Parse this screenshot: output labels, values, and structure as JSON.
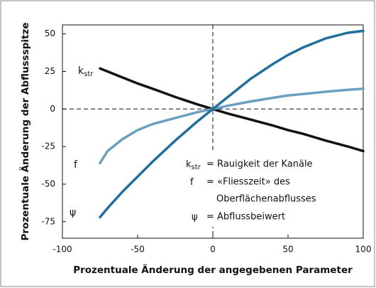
{
  "chart_data": {
    "type": "line",
    "xlabel": "Prozentuale Änderung der angegebenen Parameter",
    "ylabel": "Prozentuale Änderung der Abflussspitze",
    "x": [
      -75,
      -70,
      -60,
      -50,
      -40,
      -25,
      -10,
      0,
      10,
      25,
      40,
      50,
      60,
      75,
      90,
      100
    ],
    "series": [
      {
        "name": "k",
        "subscript": "str",
        "color": "#111111",
        "description": [
          "= Rauigkeit der Kanäle"
        ],
        "values": [
          27,
          25,
          21,
          17,
          13.5,
          8,
          3,
          0,
          -3,
          -7,
          -11,
          -14,
          -16.5,
          -21,
          -25,
          -28
        ]
      },
      {
        "name": "f",
        "color": "#6a9fc0",
        "description": [
          "= «Fliesszeit» des",
          "Oberflächenabflusses"
        ],
        "values": [
          -36,
          -28,
          -20,
          -14,
          -10,
          -6,
          -2,
          0,
          2.2,
          5,
          7.5,
          9,
          10,
          11.5,
          12.8,
          13.5
        ]
      },
      {
        "name": "ψ",
        "color": "#1f6e9c",
        "description": [
          "= Abflussbeiwert"
        ],
        "values": [
          -72,
          -66,
          -55,
          -45,
          -35,
          -21,
          -8,
          0,
          8,
          20,
          30,
          36,
          41,
          47,
          50.8,
          52
        ]
      }
    ],
    "xlim": [
      -100,
      100
    ],
    "xticks": [
      -100,
      -50,
      0,
      50,
      100
    ],
    "ylim": [
      -86,
      56
    ],
    "yticks": [
      -75,
      -50,
      -25,
      0,
      25,
      50
    ],
    "grid": false
  }
}
